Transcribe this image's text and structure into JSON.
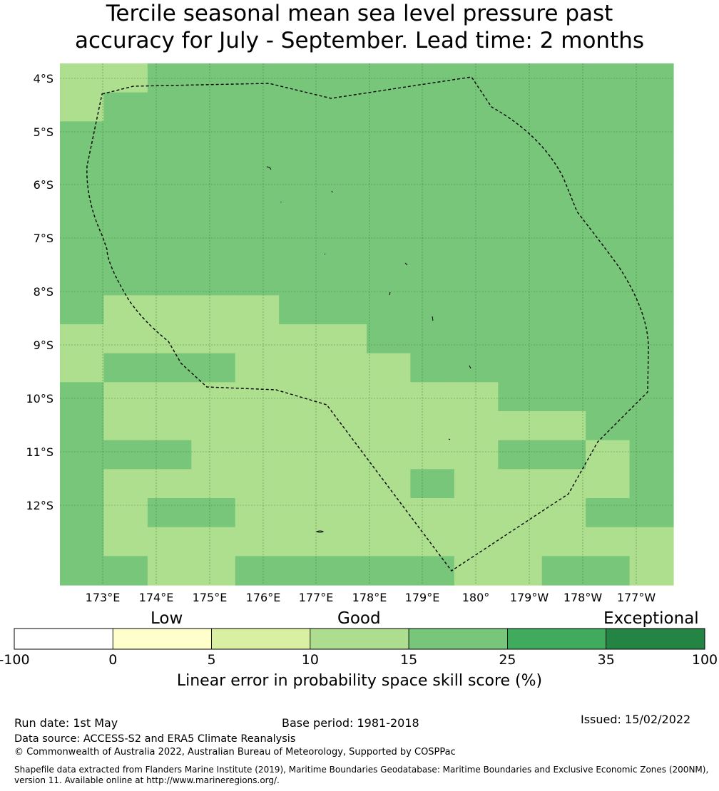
{
  "title": {
    "line1": "Tercile seasonal mean sea level pressure past",
    "line2": "accuracy for July - September. Lead time: 2 months"
  },
  "map": {
    "lat_labels": [
      "4°S",
      "5°S",
      "6°S",
      "7°S",
      "8°S",
      "9°S",
      "10°S",
      "11°S",
      "12°S"
    ],
    "lon_labels": [
      "173°E",
      "174°E",
      "175°E",
      "176°E",
      "177°E",
      "178°E",
      "179°E",
      "180°",
      "179°W",
      "178°W",
      "177°W"
    ],
    "colors": {
      "class_10_15": "#addf8e",
      "class_15_25": "#78c67a",
      "border": "#000000"
    },
    "cell_classes_note": "grid of skill-score classes: 1 = 10-15, 2 = 15-25",
    "grid": [
      [
        1,
        1,
        2,
        2,
        2,
        2,
        2,
        2,
        2,
        2,
        2,
        2,
        2,
        2
      ],
      [
        1,
        2,
        2,
        2,
        2,
        2,
        2,
        2,
        2,
        2,
        2,
        2,
        2,
        2
      ],
      [
        2,
        2,
        2,
        2,
        2,
        2,
        2,
        2,
        2,
        2,
        2,
        2,
        2,
        2
      ],
      [
        2,
        2,
        2,
        2,
        2,
        2,
        2,
        2,
        2,
        2,
        2,
        2,
        2,
        2
      ],
      [
        2,
        2,
        2,
        2,
        2,
        2,
        2,
        2,
        2,
        2,
        2,
        2,
        2,
        2
      ],
      [
        2,
        2,
        2,
        2,
        2,
        2,
        2,
        2,
        2,
        2,
        2,
        2,
        2,
        2
      ],
      [
        2,
        2,
        2,
        2,
        2,
        2,
        2,
        2,
        2,
        2,
        2,
        2,
        2,
        2
      ],
      [
        2,
        2,
        2,
        2,
        2,
        2,
        2,
        2,
        2,
        2,
        2,
        2,
        2,
        2
      ],
      [
        2,
        1,
        1,
        1,
        1,
        2,
        2,
        2,
        2,
        2,
        2,
        2,
        2,
        2
      ],
      [
        1,
        1,
        1,
        1,
        1,
        1,
        1,
        2,
        2,
        2,
        2,
        2,
        2,
        2
      ],
      [
        1,
        2,
        2,
        2,
        1,
        1,
        1,
        1,
        2,
        2,
        2,
        2,
        2,
        2
      ],
      [
        2,
        1,
        1,
        1,
        1,
        1,
        1,
        1,
        1,
        1,
        2,
        2,
        2,
        2
      ],
      [
        2,
        1,
        1,
        1,
        1,
        1,
        1,
        1,
        1,
        1,
        1,
        1,
        2,
        2
      ],
      [
        2,
        2,
        2,
        1,
        1,
        1,
        1,
        1,
        1,
        1,
        2,
        2,
        1,
        2
      ],
      [
        2,
        1,
        1,
        1,
        1,
        1,
        1,
        1,
        2,
        1,
        1,
        1,
        1,
        2
      ],
      [
        2,
        1,
        2,
        2,
        1,
        1,
        1,
        1,
        1,
        1,
        1,
        1,
        2,
        2
      ],
      [
        2,
        1,
        1,
        1,
        1,
        1,
        1,
        1,
        1,
        1,
        1,
        1,
        1,
        1
      ],
      [
        2,
        2,
        1,
        1,
        2,
        2,
        2,
        2,
        2,
        1,
        1,
        2,
        2,
        1
      ]
    ]
  },
  "colorbar": {
    "categories": [
      "Low",
      "Good",
      "Exceptional"
    ],
    "ticks": [
      "-100",
      "0",
      "5",
      "10",
      "15",
      "25",
      "35",
      "100"
    ],
    "colors": [
      "#ffffff",
      "#ffffcc",
      "#d9f0a3",
      "#addd8e",
      "#78c679",
      "#41ab5d",
      "#238443"
    ],
    "label": "Linear error in probability space skill score (%)"
  },
  "footer": {
    "run_date": "Run date: 1st May",
    "base_period": "Base period: 1981-2018",
    "issued": "Issued: 15/02/2022",
    "data_source": "Data source: ACCESS-S2 and ERA5 Climate Reanalysis",
    "copyright": "© Commonwealth of Australia 2022, Australian Bureau of Meteorology, Supported by COSPPac",
    "shapefile": "Shapefile data extracted from Flanders Marine Institute (2019), Maritime Boundaries Geodatabase: Maritime Boundaries and Exclusive Economic Zones (200NM), version 11. Available online at http://www.marineregions.org/."
  }
}
